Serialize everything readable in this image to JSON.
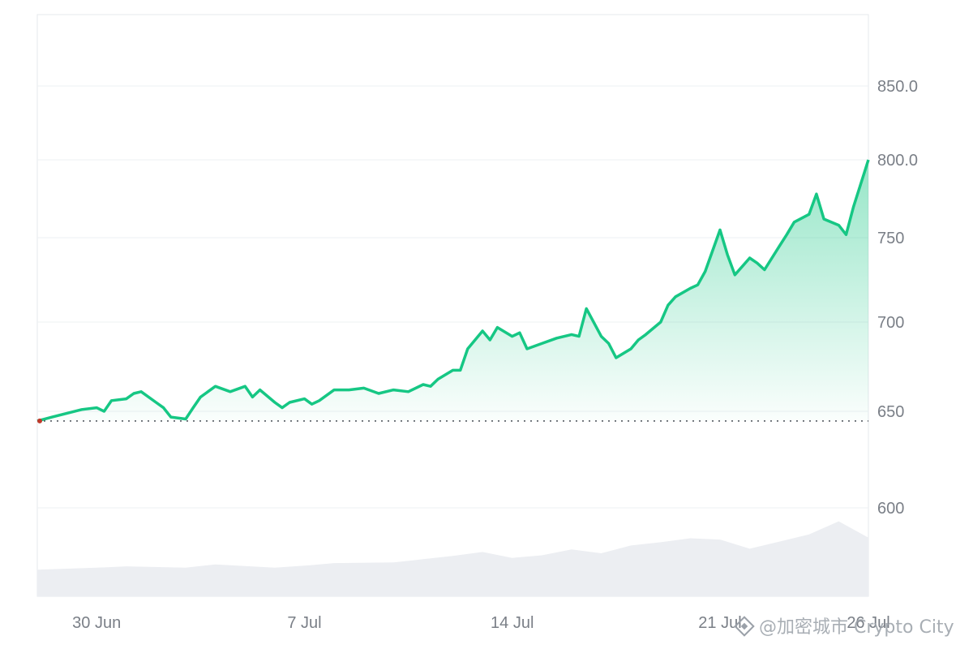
{
  "chart_data": {
    "type": "area",
    "title": "",
    "xlabel": "",
    "ylabel": "",
    "xlim": [
      "2024-06-28",
      "2024-07-26"
    ],
    "ylim": [
      575,
      890
    ],
    "y_ticks": [
      {
        "value": 850,
        "label": "850.0"
      },
      {
        "value": 800,
        "label": "800.0"
      },
      {
        "value": 750,
        "label": "750"
      },
      {
        "value": 700,
        "label": "700"
      },
      {
        "value": 650,
        "label": "650"
      },
      {
        "value": 600,
        "label": "600"
      }
    ],
    "x_ticks": [
      {
        "date": "2024-06-30",
        "label": "30 Jun"
      },
      {
        "date": "2024-07-07",
        "label": "7 Jul"
      },
      {
        "date": "2024-07-14",
        "label": "14 Jul"
      },
      {
        "date": "2024-07-21",
        "label": "21 Jul"
      },
      {
        "date": "2024-07-26",
        "label": "26 Jul"
      }
    ],
    "reference_line": {
      "value": 645,
      "style": "dotted"
    },
    "series": [
      {
        "values": [
          [
            "2024-06-28",
            645
          ],
          [
            "2024-06-28T12:00",
            647
          ],
          [
            "2024-06-29",
            649
          ],
          [
            "2024-06-29T12:00",
            651
          ],
          [
            "2024-06-30",
            652
          ],
          [
            "2024-06-30T06:00",
            650
          ],
          [
            "2024-06-30T12:00",
            656
          ],
          [
            "2024-07-01",
            657
          ],
          [
            "2024-07-01T06:00",
            660
          ],
          [
            "2024-07-01T12:00",
            661
          ],
          [
            "2024-07-02",
            655
          ],
          [
            "2024-07-02T06:00",
            652
          ],
          [
            "2024-07-02T12:00",
            647
          ],
          [
            "2024-07-03",
            646
          ],
          [
            "2024-07-03T06:00",
            652
          ],
          [
            "2024-07-03T12:00",
            658
          ],
          [
            "2024-07-04",
            664
          ],
          [
            "2024-07-04T12:00",
            661
          ],
          [
            "2024-07-05",
            664
          ],
          [
            "2024-07-05T06:00",
            658
          ],
          [
            "2024-07-05T12:00",
            662
          ],
          [
            "2024-07-06",
            655
          ],
          [
            "2024-07-06T06:00",
            652
          ],
          [
            "2024-07-06T12:00",
            655
          ],
          [
            "2024-07-07",
            657
          ],
          [
            "2024-07-07T06:00",
            654
          ],
          [
            "2024-07-07T12:00",
            656
          ],
          [
            "2024-07-08",
            662
          ],
          [
            "2024-07-08T12:00",
            662
          ],
          [
            "2024-07-09",
            663
          ],
          [
            "2024-07-09T12:00",
            660
          ],
          [
            "2024-07-10",
            662
          ],
          [
            "2024-07-10T12:00",
            661
          ],
          [
            "2024-07-11",
            665
          ],
          [
            "2024-07-11T06:00",
            664
          ],
          [
            "2024-07-11T12:00",
            668
          ],
          [
            "2024-07-12",
            673
          ],
          [
            "2024-07-12T06:00",
            673
          ],
          [
            "2024-07-12T12:00",
            685
          ],
          [
            "2024-07-13",
            695
          ],
          [
            "2024-07-13T06:00",
            690
          ],
          [
            "2024-07-13T12:00",
            697
          ],
          [
            "2024-07-14",
            692
          ],
          [
            "2024-07-14T06:00",
            694
          ],
          [
            "2024-07-14T12:00",
            685
          ],
          [
            "2024-07-15",
            688
          ],
          [
            "2024-07-15T12:00",
            691
          ],
          [
            "2024-07-16",
            693
          ],
          [
            "2024-07-16T06:00",
            692
          ],
          [
            "2024-07-16T12:00",
            708
          ],
          [
            "2024-07-17",
            692
          ],
          [
            "2024-07-17T06:00",
            688
          ],
          [
            "2024-07-17T12:00",
            680
          ],
          [
            "2024-07-18",
            685
          ],
          [
            "2024-07-18T06:00",
            690
          ],
          [
            "2024-07-18T12:00",
            693
          ],
          [
            "2024-07-19",
            700
          ],
          [
            "2024-07-19T06:00",
            710
          ],
          [
            "2024-07-19T12:00",
            715
          ],
          [
            "2024-07-20",
            720
          ],
          [
            "2024-07-20T06:00",
            722
          ],
          [
            "2024-07-20T12:00",
            730
          ],
          [
            "2024-07-21",
            755
          ],
          [
            "2024-07-21T06:00",
            740
          ],
          [
            "2024-07-21T12:00",
            728
          ],
          [
            "2024-07-22",
            738
          ],
          [
            "2024-07-22T06:00",
            735
          ],
          [
            "2024-07-22T12:00",
            731
          ],
          [
            "2024-07-23",
            745
          ],
          [
            "2024-07-23T06:00",
            752
          ],
          [
            "2024-07-23T12:00",
            760
          ],
          [
            "2024-07-24",
            765
          ],
          [
            "2024-07-24T06:00",
            778
          ],
          [
            "2024-07-24T12:00",
            762
          ],
          [
            "2024-07-25",
            758
          ],
          [
            "2024-07-25T06:00",
            752
          ],
          [
            "2024-07-25T12:00",
            770
          ],
          [
            "2024-07-26",
            800
          ]
        ]
      }
    ],
    "volume": [
      [
        "2024-06-28",
        6
      ],
      [
        "2024-06-30",
        9
      ],
      [
        "2024-07-01",
        11
      ],
      [
        "2024-07-03",
        9
      ],
      [
        "2024-07-04",
        14
      ],
      [
        "2024-07-06",
        9
      ],
      [
        "2024-07-07",
        12
      ],
      [
        "2024-07-08",
        16
      ],
      [
        "2024-07-10",
        17
      ],
      [
        "2024-07-11",
        22
      ],
      [
        "2024-07-12",
        27
      ],
      [
        "2024-07-13",
        33
      ],
      [
        "2024-07-14",
        24
      ],
      [
        "2024-07-15",
        28
      ],
      [
        "2024-07-16",
        37
      ],
      [
        "2024-07-17",
        31
      ],
      [
        "2024-07-18",
        43
      ],
      [
        "2024-07-19",
        48
      ],
      [
        "2024-07-20",
        54
      ],
      [
        "2024-07-21",
        52
      ],
      [
        "2024-07-22",
        38
      ],
      [
        "2024-07-23",
        49
      ],
      [
        "2024-07-24",
        60
      ],
      [
        "2024-07-25",
        80
      ],
      [
        "2024-07-26",
        55
      ]
    ],
    "colors": {
      "line": "#16c784",
      "area": "#16c784",
      "volume": "#eceef2",
      "grid": "#eef0f3",
      "reference": "#555a62",
      "text": "#7a7f87"
    },
    "grid": true,
    "legend": "none"
  },
  "watermark": {
    "text": "@加密城市 Crypto City",
    "icon": "diamond-logo-icon"
  }
}
